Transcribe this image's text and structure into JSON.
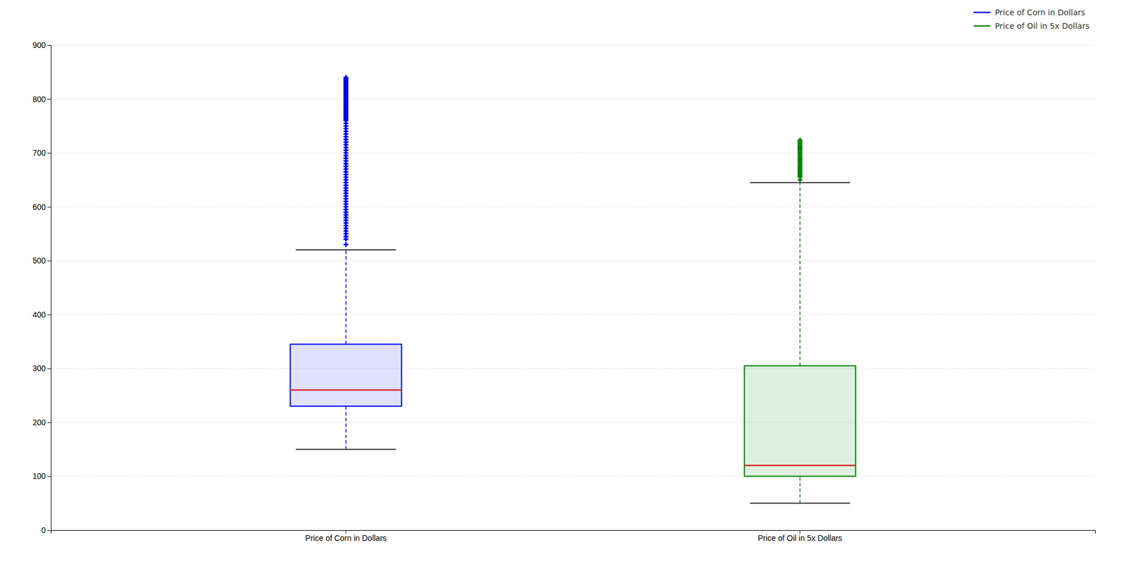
{
  "chart_data": {
    "type": "box",
    "categories": [
      "Price of Corn in Dollars",
      "Price of Oil in 5x Dollars"
    ],
    "series": [
      {
        "name": "Price of Corn in Dollars",
        "color": "#0000ff",
        "q1": 230,
        "median": 260,
        "q3": 345,
        "whisker_low": 150,
        "whisker_high": 520,
        "outliers": [
          530,
          540,
          545,
          550,
          555,
          560,
          565,
          570,
          575,
          580,
          585,
          590,
          595,
          600,
          605,
          610,
          615,
          620,
          625,
          630,
          635,
          640,
          645,
          650,
          655,
          660,
          665,
          670,
          675,
          680,
          685,
          690,
          695,
          700,
          705,
          710,
          715,
          720,
          725,
          730,
          735,
          740,
          745,
          750,
          755,
          760,
          762,
          764,
          766,
          768,
          770,
          772,
          774,
          776,
          778,
          780,
          782,
          784,
          786,
          788,
          790,
          792,
          794,
          796,
          798,
          800,
          802,
          804,
          806,
          808,
          810,
          812,
          814,
          816,
          818,
          820,
          822,
          824,
          826,
          828,
          830,
          832,
          834,
          836,
          838,
          840
        ]
      },
      {
        "name": "Price of Oil in 5x Dollars",
        "color": "#008000",
        "q1": 100,
        "median": 120,
        "q3": 305,
        "whisker_low": 50,
        "whisker_high": 645,
        "outliers": [
          650,
          655,
          658,
          661,
          664,
          667,
          670,
          673,
          676,
          679,
          682,
          685,
          688,
          691,
          694,
          697,
          700,
          703,
          706,
          709,
          712,
          715,
          718,
          721,
          724
        ]
      }
    ],
    "ylim": [
      0,
      900
    ],
    "yticks": [
      0,
      100,
      200,
      300,
      400,
      500,
      600,
      700,
      800,
      900
    ],
    "grid": true,
    "legend": "upper right"
  }
}
